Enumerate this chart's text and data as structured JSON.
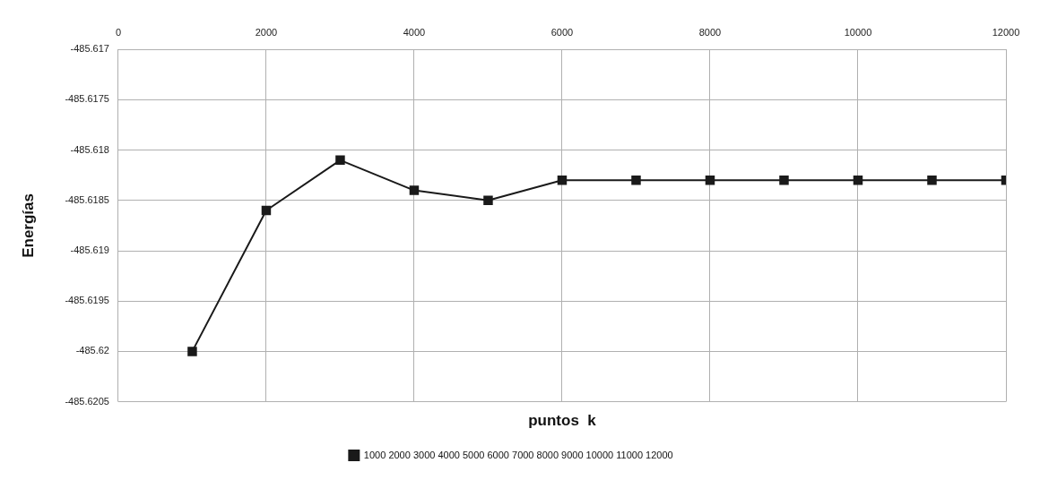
{
  "chart_data": {
    "type": "line",
    "xlabel": "puntos  k",
    "ylabel": "Energías",
    "x": [
      1000,
      2000,
      3000,
      4000,
      5000,
      6000,
      7000,
      8000,
      9000,
      10000,
      11000,
      12000
    ],
    "series": [
      {
        "name": "1000 2000 3000 4000 5000 6000 7000 8000 9000 10000 11000 12000",
        "color": "#1a1a1a",
        "values": [
          -485.62,
          -485.6186,
          -485.6181,
          -485.6184,
          -485.6185,
          -485.6183,
          -485.6183,
          -485.6183,
          -485.6183,
          -485.6183,
          -485.6183,
          -485.6183
        ]
      }
    ],
    "xlim": [
      0,
      12000
    ],
    "xticks": [
      0,
      2000,
      4000,
      6000,
      8000,
      10000,
      12000
    ],
    "ylim": [
      -485.6205,
      -485.617
    ],
    "yticks": [
      -485.6205,
      -485.62,
      -485.6195,
      -485.619,
      -485.6185,
      -485.618,
      -485.6175,
      -485.617
    ],
    "grid": true,
    "legend": "bottom",
    "marker": "square",
    "line_style": "solid"
  }
}
